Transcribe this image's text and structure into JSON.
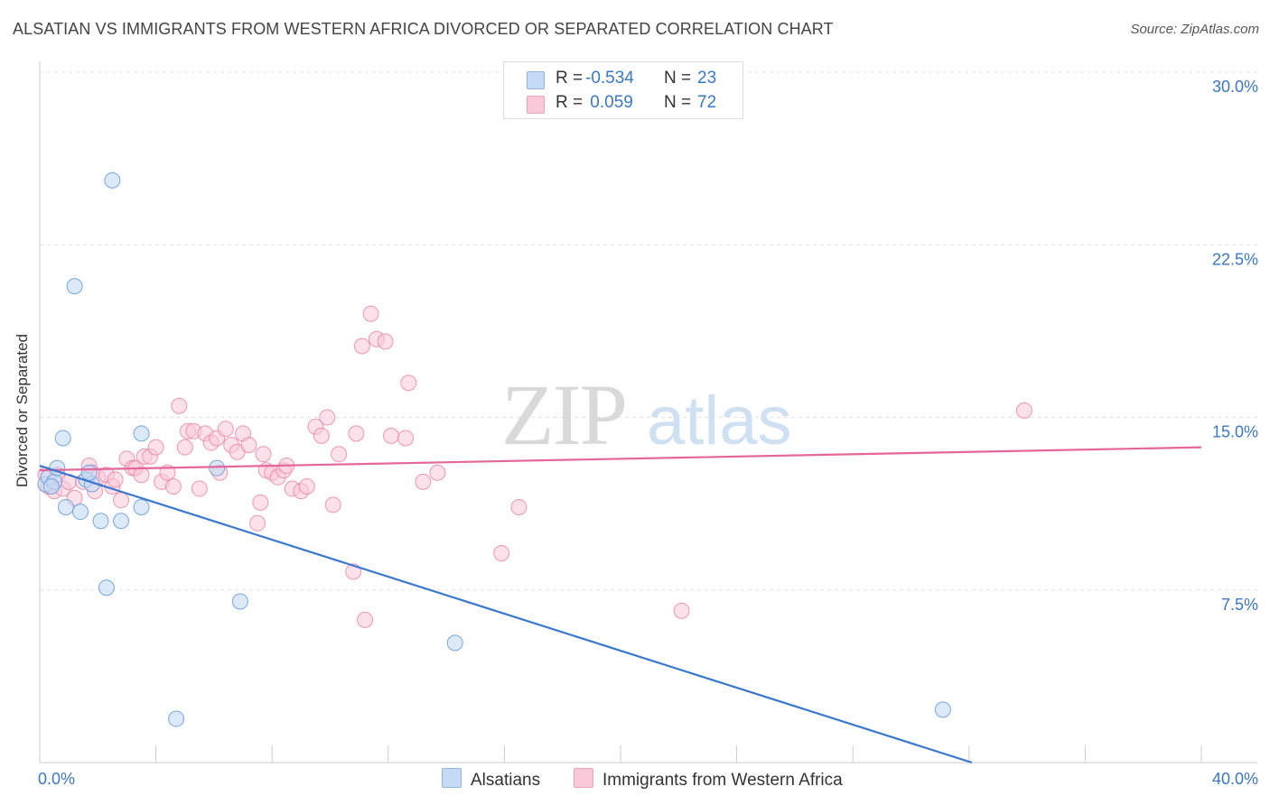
{
  "header": {
    "title": "ALSATIAN VS IMMIGRANTS FROM WESTERN AFRICA DIVORCED OR SEPARATED CORRELATION CHART",
    "source": "Source: ZipAtlas.com"
  },
  "watermark": {
    "part1": "ZIP",
    "part2": "atlas"
  },
  "legend": {
    "rows": [
      {
        "r_label": "R =",
        "r_value": "-0.534",
        "n_label": "N =",
        "n_value": "23"
      },
      {
        "r_label": "R =",
        "r_value": " 0.059",
        "n_label": "N =",
        "n_value": "72"
      }
    ]
  },
  "bottom_legend": {
    "series1": "Alsatians",
    "series2": "Immigrants from Western Africa"
  },
  "chart_data": {
    "type": "scatter",
    "xlabel": "",
    "ylabel": "Divorced or Separated",
    "xlim": [
      0,
      40
    ],
    "ylim": [
      0,
      30
    ],
    "x_tick_labels": [
      "0.0%",
      "40.0%"
    ],
    "y_ticks": [
      7.5,
      15.0,
      22.5,
      30.0
    ],
    "y_tick_labels": [
      "7.5%",
      "15.0%",
      "22.5%",
      "30.0%"
    ],
    "grid": true,
    "colors": {
      "series1": "#6a9fd8",
      "series1_fill": "#c5daf5",
      "series2": "#e87fa3",
      "series2_fill": "#f9c9d9",
      "line1": "#3a78d0",
      "line2": "#e5679a",
      "tick_label": "#3a78c4"
    },
    "series": [
      {
        "name": "Alsatians",
        "trend": [
          [
            0,
            12.9
          ],
          [
            32.1,
            0
          ]
        ],
        "points": [
          [
            0.2,
            12.1
          ],
          [
            0.3,
            12.4
          ],
          [
            0.5,
            12.2
          ],
          [
            0.6,
            12.8
          ],
          [
            0.8,
            14.1
          ],
          [
            0.9,
            11.1
          ],
          [
            1.2,
            20.7
          ],
          [
            1.4,
            10.9
          ],
          [
            1.6,
            12.3
          ],
          [
            1.8,
            12.1
          ],
          [
            2.1,
            10.5
          ],
          [
            2.3,
            7.6
          ],
          [
            2.5,
            25.3
          ],
          [
            2.8,
            10.5
          ],
          [
            3.5,
            11.1
          ],
          [
            3.5,
            14.3
          ],
          [
            4.7,
            1.9
          ],
          [
            6.1,
            12.8
          ],
          [
            6.9,
            7.0
          ],
          [
            14.3,
            5.2
          ],
          [
            31.1,
            2.3
          ],
          [
            0.4,
            12.0
          ],
          [
            1.7,
            12.6
          ]
        ]
      },
      {
        "name": "Immigrants from Western Africa",
        "trend": [
          [
            0,
            12.7
          ],
          [
            40,
            13.7
          ]
        ],
        "points": [
          [
            0.2,
            12.5
          ],
          [
            0.3,
            12.0
          ],
          [
            0.5,
            11.8
          ],
          [
            0.6,
            12.5
          ],
          [
            0.8,
            11.9
          ],
          [
            1.0,
            12.2
          ],
          [
            1.2,
            11.5
          ],
          [
            1.5,
            12.2
          ],
          [
            1.7,
            12.9
          ],
          [
            1.8,
            12.6
          ],
          [
            1.9,
            11.8
          ],
          [
            2.0,
            12.4
          ],
          [
            2.3,
            12.5
          ],
          [
            2.5,
            12.0
          ],
          [
            2.6,
            12.3
          ],
          [
            2.8,
            11.4
          ],
          [
            3.0,
            13.2
          ],
          [
            3.2,
            12.8
          ],
          [
            3.3,
            12.8
          ],
          [
            3.5,
            12.5
          ],
          [
            3.6,
            13.3
          ],
          [
            3.8,
            13.3
          ],
          [
            4.0,
            13.7
          ],
          [
            4.2,
            12.2
          ],
          [
            4.4,
            12.6
          ],
          [
            4.6,
            12.0
          ],
          [
            4.8,
            15.5
          ],
          [
            5.0,
            13.7
          ],
          [
            5.1,
            14.4
          ],
          [
            5.3,
            14.4
          ],
          [
            5.5,
            11.9
          ],
          [
            5.7,
            14.3
          ],
          [
            5.9,
            13.9
          ],
          [
            6.1,
            14.1
          ],
          [
            6.2,
            12.6
          ],
          [
            6.4,
            14.5
          ],
          [
            6.6,
            13.8
          ],
          [
            6.8,
            13.5
          ],
          [
            7.0,
            14.3
          ],
          [
            7.2,
            13.8
          ],
          [
            7.5,
            10.4
          ],
          [
            7.6,
            11.3
          ],
          [
            7.7,
            13.4
          ],
          [
            7.8,
            12.7
          ],
          [
            8.0,
            12.6
          ],
          [
            8.2,
            12.4
          ],
          [
            8.4,
            12.7
          ],
          [
            8.5,
            12.9
          ],
          [
            8.7,
            11.9
          ],
          [
            9.0,
            11.8
          ],
          [
            9.2,
            12.0
          ],
          [
            9.5,
            14.6
          ],
          [
            9.7,
            14.2
          ],
          [
            9.9,
            15.0
          ],
          [
            10.1,
            11.2
          ],
          [
            10.3,
            13.4
          ],
          [
            10.8,
            8.3
          ],
          [
            10.9,
            14.3
          ],
          [
            11.1,
            18.1
          ],
          [
            11.2,
            6.2
          ],
          [
            11.4,
            19.5
          ],
          [
            11.6,
            18.4
          ],
          [
            11.9,
            18.3
          ],
          [
            12.1,
            14.2
          ],
          [
            12.6,
            14.1
          ],
          [
            12.7,
            16.5
          ],
          [
            13.2,
            12.2
          ],
          [
            13.7,
            12.6
          ],
          [
            15.9,
            9.1
          ],
          [
            16.5,
            11.1
          ],
          [
            22.1,
            6.6
          ],
          [
            33.9,
            15.3
          ]
        ]
      }
    ]
  }
}
